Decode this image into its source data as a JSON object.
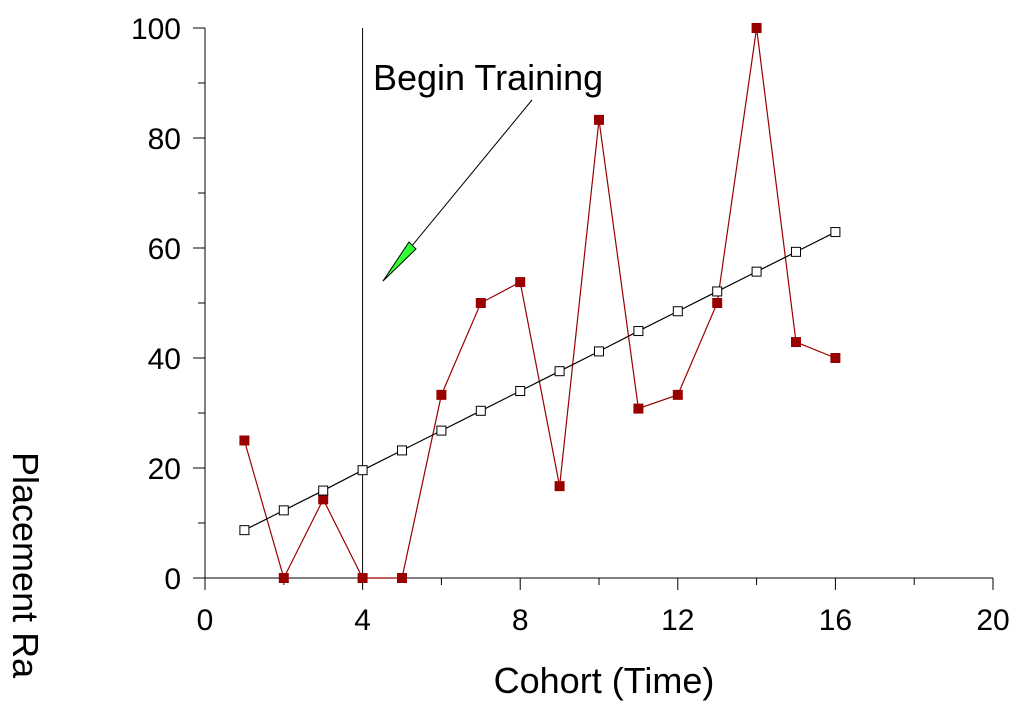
{
  "chart_data": {
    "type": "line",
    "title": "",
    "xlabel": "Cohort (Time)",
    "ylabel": "Placement Ra",
    "xlim": [
      0,
      20
    ],
    "ylim": [
      0,
      100
    ],
    "x_ticks": [
      0,
      4,
      8,
      12,
      16,
      20
    ],
    "y_ticks": [
      0,
      20,
      40,
      60,
      80,
      100
    ],
    "grid": false,
    "series": [
      {
        "marker": "filled-square",
        "color": "#990000",
        "x": [
          1,
          2,
          3,
          4,
          5,
          6,
          7,
          8,
          9,
          10,
          11,
          12,
          13,
          14,
          15,
          16
        ],
        "values": [
          25,
          0,
          14.3,
          0,
          0,
          33.3,
          50,
          53.8,
          16.7,
          83.3,
          30.8,
          33.3,
          50,
          100,
          42.9,
          40
        ]
      },
      {
        "marker": "open-square",
        "color": "#000000",
        "x": [
          1,
          2,
          3,
          4,
          5,
          6,
          7,
          8,
          9,
          10,
          11,
          12,
          13,
          14,
          15,
          16
        ],
        "values": [
          8.7,
          12.3,
          15.9,
          19.6,
          23.2,
          26.8,
          30.4,
          34.0,
          37.6,
          41.2,
          44.9,
          48.5,
          52.1,
          55.7,
          59.3,
          62.9
        ]
      }
    ],
    "annotations": [
      {
        "text": "Begin Training",
        "x": 4,
        "type": "vertical-line",
        "arrow_color": "#33ff33"
      }
    ]
  }
}
